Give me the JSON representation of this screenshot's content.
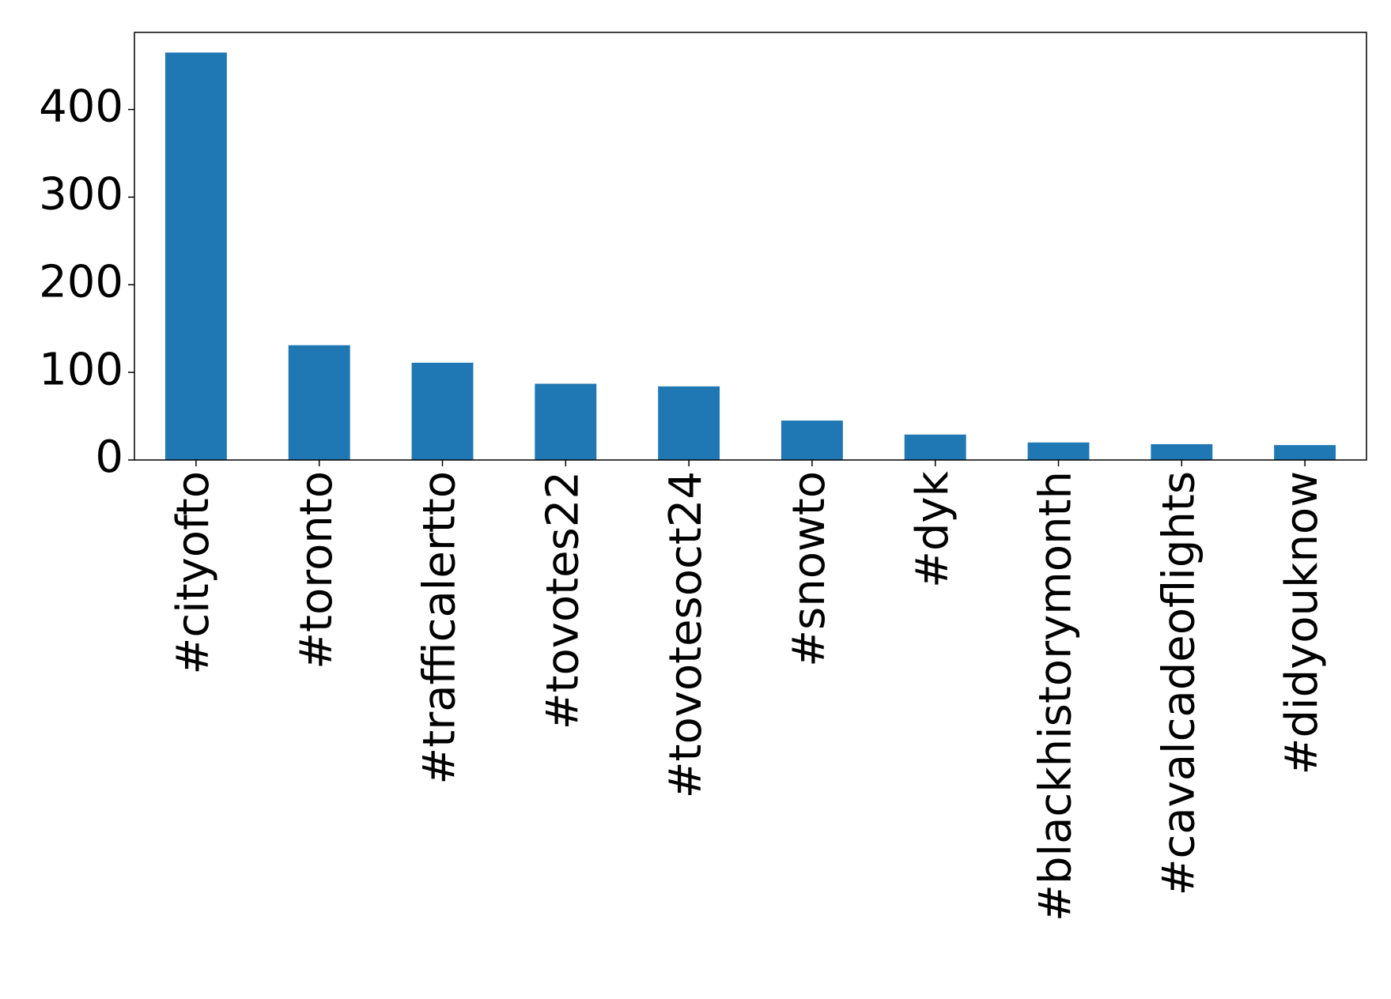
{
  "chart_data": {
    "type": "bar",
    "categories": [
      "#cityofto",
      "#toronto",
      "#trafficalertto",
      "#tovotes22",
      "#tovotesoct24",
      "#snowto",
      "#dyk",
      "#blackhistorymonth",
      "#cavalcadeoflights",
      "#didyouknow"
    ],
    "values": [
      465,
      131,
      111,
      87,
      84,
      45,
      29,
      20,
      18,
      17
    ],
    "color": "#1f77b4",
    "ylim": [
      0,
      488
    ],
    "yticks": [
      0,
      100,
      200,
      300,
      400
    ],
    "grid": false
  }
}
